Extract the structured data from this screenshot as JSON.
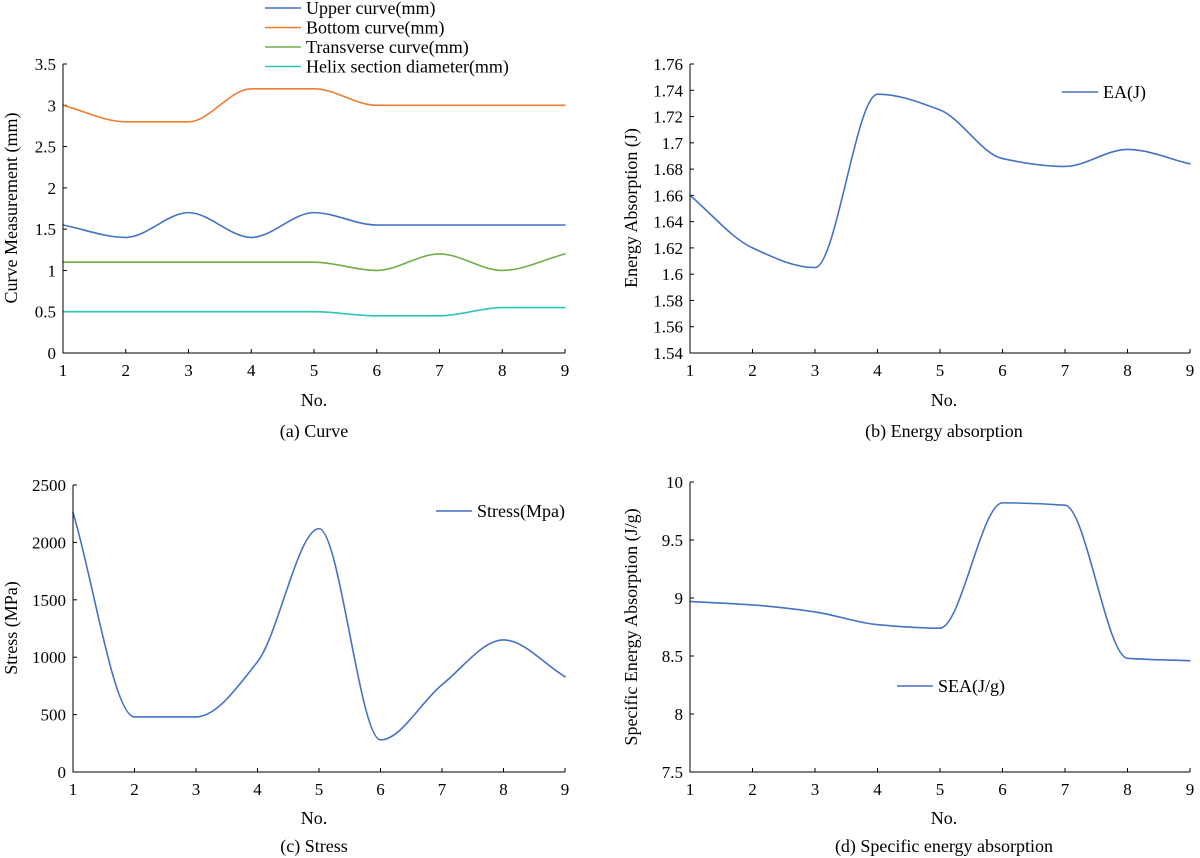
{
  "chart_data": [
    {
      "id": "a",
      "type": "line",
      "caption": "(a) Curve",
      "xlabel": "No.",
      "ylabel": "Curve Measurement (mm)",
      "x": [
        1,
        2,
        3,
        4,
        5,
        6,
        7,
        8,
        9
      ],
      "xlim": [
        1,
        9
      ],
      "ylim": [
        0,
        3.5
      ],
      "xticks": [
        "1",
        "2",
        "3",
        "4",
        "5",
        "6",
        "7",
        "8",
        "9"
      ],
      "yticks": [
        "0",
        "0.5",
        "1",
        "1.5",
        "2",
        "2.5",
        "3",
        "3.5"
      ],
      "legend_position": "top-outside",
      "series": [
        {
          "name": "Upper curve(mm)",
          "color": "#4472C4",
          "values": [
            1.55,
            1.4,
            1.7,
            1.4,
            1.7,
            1.55,
            1.55,
            1.55,
            1.55
          ]
        },
        {
          "name": "Bottom curve(mm)",
          "color": "#ED7D31",
          "values": [
            3.0,
            2.8,
            2.8,
            3.2,
            3.2,
            3.0,
            3.0,
            3.0,
            3.0
          ]
        },
        {
          "name": "Transverse curve(mm)",
          "color": "#70AD47",
          "values": [
            1.1,
            1.1,
            1.1,
            1.1,
            1.1,
            1.0,
            1.2,
            1.0,
            1.2
          ]
        },
        {
          "name": "Helix section diameter(mm)",
          "color": "#2EC4B6",
          "values": [
            0.5,
            0.5,
            0.5,
            0.5,
            0.5,
            0.45,
            0.45,
            0.55,
            0.55
          ]
        }
      ]
    },
    {
      "id": "b",
      "type": "line",
      "caption": "(b) Energy absorption",
      "xlabel": "No.",
      "ylabel": "Energy Absorption (J)",
      "x": [
        1,
        2,
        3,
        4,
        5,
        6,
        7,
        8,
        9
      ],
      "xlim": [
        1,
        9
      ],
      "ylim": [
        1.54,
        1.76
      ],
      "xticks": [
        "1",
        "2",
        "3",
        "4",
        "5",
        "6",
        "7",
        "8",
        "9"
      ],
      "yticks": [
        "1.54",
        "1.56",
        "1.58",
        "1.6",
        "1.62",
        "1.64",
        "1.66",
        "1.68",
        "1.7",
        "1.72",
        "1.74",
        "1.76"
      ],
      "legend_position": "top-right",
      "series": [
        {
          "name": "EA(J)",
          "color": "#4472C4",
          "values": [
            1.66,
            1.62,
            1.605,
            1.737,
            1.725,
            1.688,
            1.682,
            1.695,
            1.684
          ]
        }
      ]
    },
    {
      "id": "c",
      "type": "line",
      "caption": "(c) Stress",
      "xlabel": "No.",
      "ylabel": "Stress (MPa)",
      "x": [
        1,
        2,
        3,
        4,
        5,
        6,
        7,
        8,
        9
      ],
      "xlim": [
        1,
        9
      ],
      "ylim": [
        0,
        2500
      ],
      "xticks": [
        "1",
        "2",
        "3",
        "4",
        "5",
        "6",
        "7",
        "8",
        "9"
      ],
      "yticks": [
        "0",
        "500",
        "1000",
        "1500",
        "2000",
        "2500"
      ],
      "legend_position": "top-right",
      "series": [
        {
          "name": "Stress(Mpa)",
          "color": "#4472C4",
          "values": [
            2260,
            480,
            480,
            960,
            2120,
            280,
            760,
            1150,
            830
          ]
        }
      ]
    },
    {
      "id": "d",
      "type": "line",
      "caption": "(d) Specific energy absorption",
      "xlabel": "No.",
      "ylabel": "Specific Energy Absorption (J/g)",
      "x": [
        1,
        2,
        3,
        4,
        5,
        6,
        7,
        8,
        9
      ],
      "xlim": [
        1,
        9
      ],
      "ylim": [
        7.5,
        10
      ],
      "xticks": [
        "1",
        "2",
        "3",
        "4",
        "5",
        "6",
        "7",
        "8",
        "9"
      ],
      "yticks": [
        "7.5",
        "8",
        "8.5",
        "9",
        "9.5",
        "10"
      ],
      "legend_position": "center",
      "series": [
        {
          "name": "SEA(J/g)",
          "color": "#4472C4",
          "values": [
            8.97,
            8.94,
            8.88,
            8.77,
            8.74,
            9.82,
            9.8,
            8.48,
            8.46
          ]
        }
      ]
    }
  ]
}
